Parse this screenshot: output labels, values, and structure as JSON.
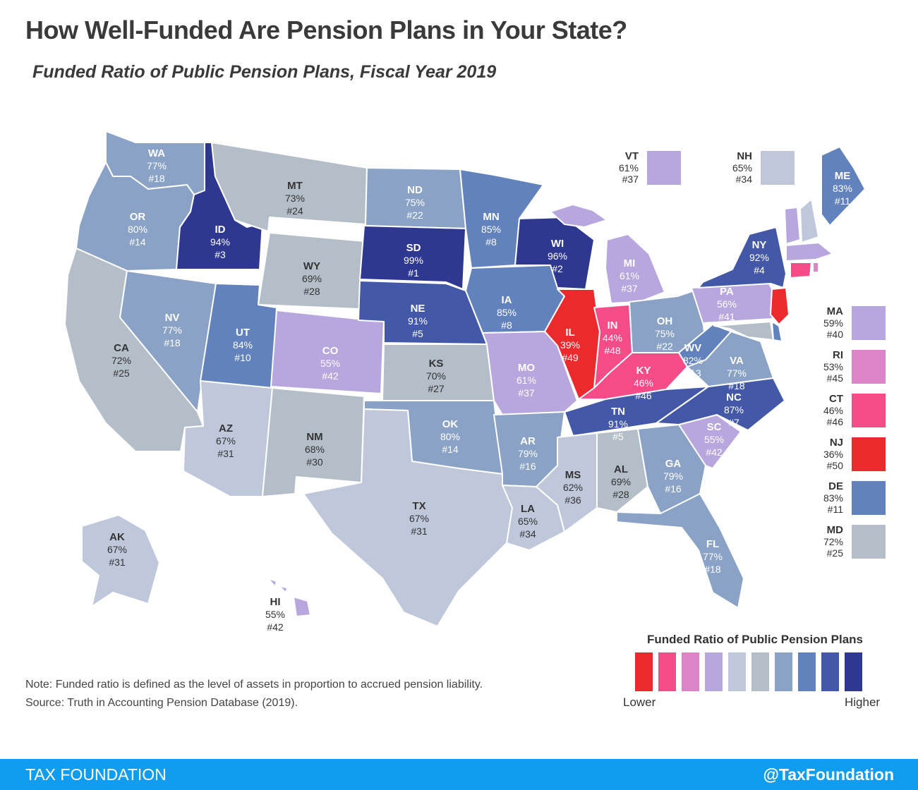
{
  "title": "How Well-Funded Are Pension Plans in Your State?",
  "subtitle": "Funded Ratio of Public Pension Plans, Fiscal Year 2019",
  "colors": {
    "c1": "#ec2a2e",
    "c2": "#f54b89",
    "c3": "#dc84c8",
    "c4": "#b7a7de",
    "c5": "#bfc8db",
    "c6": "#b4bec8",
    "c7": "#8aa2c5",
    "c8": "#6282bd",
    "c9": "#4359a8",
    "c10": "#2f3891"
  },
  "states": {
    "WA": {
      "value": "77%",
      "rank": "#18",
      "color": "c7"
    },
    "OR": {
      "value": "80%",
      "rank": "#14",
      "color": "c7"
    },
    "CA": {
      "value": "72%",
      "rank": "#25",
      "color": "c6"
    },
    "ID": {
      "value": "94%",
      "rank": "#3",
      "color": "c10"
    },
    "NV": {
      "value": "77%",
      "rank": "#18",
      "color": "c7"
    },
    "MT": {
      "value": "73%",
      "rank": "#24",
      "color": "c6"
    },
    "WY": {
      "value": "69%",
      "rank": "#28",
      "color": "c6"
    },
    "UT": {
      "value": "84%",
      "rank": "#10",
      "color": "c8"
    },
    "AZ": {
      "value": "67%",
      "rank": "#31",
      "color": "c5"
    },
    "CO": {
      "value": "55%",
      "rank": "#42",
      "color": "c4"
    },
    "NM": {
      "value": "68%",
      "rank": "#30",
      "color": "c6"
    },
    "ND": {
      "value": "75%",
      "rank": "#22",
      "color": "c7"
    },
    "SD": {
      "value": "99%",
      "rank": "#1",
      "color": "c10"
    },
    "NE": {
      "value": "91%",
      "rank": "#5",
      "color": "c9"
    },
    "KS": {
      "value": "70%",
      "rank": "#27",
      "color": "c6"
    },
    "OK": {
      "value": "80%",
      "rank": "#14",
      "color": "c7"
    },
    "TX": {
      "value": "67%",
      "rank": "#31",
      "color": "c5"
    },
    "MN": {
      "value": "85%",
      "rank": "#8",
      "color": "c8"
    },
    "IA": {
      "value": "85%",
      "rank": "#8",
      "color": "c8"
    },
    "MO": {
      "value": "61%",
      "rank": "#37",
      "color": "c4"
    },
    "AR": {
      "value": "79%",
      "rank": "#16",
      "color": "c7"
    },
    "LA": {
      "value": "65%",
      "rank": "#34",
      "color": "c5"
    },
    "WI": {
      "value": "96%",
      "rank": "#2",
      "color": "c10"
    },
    "IL": {
      "value": "39%",
      "rank": "#49",
      "color": "c1"
    },
    "MI": {
      "value": "61%",
      "rank": "#37",
      "color": "c4"
    },
    "IN": {
      "value": "44%",
      "rank": "#48",
      "color": "c2"
    },
    "OH": {
      "value": "75%",
      "rank": "#22",
      "color": "c7"
    },
    "KY": {
      "value": "46%",
      "rank": "#46",
      "color": "c2"
    },
    "TN": {
      "value": "91%",
      "rank": "#5",
      "color": "c9"
    },
    "MS": {
      "value": "62%",
      "rank": "#36",
      "color": "c5"
    },
    "AL": {
      "value": "69%",
      "rank": "#28",
      "color": "c6"
    },
    "GA": {
      "value": "79%",
      "rank": "#16",
      "color": "c7"
    },
    "FL": {
      "value": "77%",
      "rank": "#18",
      "color": "c7"
    },
    "SC": {
      "value": "55%",
      "rank": "#42",
      "color": "c4"
    },
    "NC": {
      "value": "87%",
      "rank": "#7",
      "color": "c9"
    },
    "VA": {
      "value": "77%",
      "rank": "#18",
      "color": "c7"
    },
    "WV": {
      "value": "82%",
      "rank": "#13",
      "color": "c8"
    },
    "PA": {
      "value": "56%",
      "rank": "#41",
      "color": "c4"
    },
    "NY": {
      "value": "92%",
      "rank": "#4",
      "color": "c9"
    },
    "ME": {
      "value": "83%",
      "rank": "#11",
      "color": "c8"
    },
    "AK": {
      "value": "67%",
      "rank": "#31",
      "color": "c5"
    },
    "HI": {
      "value": "55%",
      "rank": "#42",
      "color": "c4"
    },
    "VT": {
      "value": "61%",
      "rank": "#37",
      "color": "c4"
    },
    "NH": {
      "value": "65%",
      "rank": "#34",
      "color": "c5"
    },
    "MA": {
      "value": "59%",
      "rank": "#40",
      "color": "c4"
    },
    "RI": {
      "value": "53%",
      "rank": "#45",
      "color": "c3"
    },
    "CT": {
      "value": "46%",
      "rank": "#46",
      "color": "c2"
    },
    "NJ": {
      "value": "36%",
      "rank": "#50",
      "color": "c1"
    },
    "DE": {
      "value": "83%",
      "rank": "#11",
      "color": "c8"
    },
    "MD": {
      "value": "72%",
      "rank": "#25",
      "color": "c6"
    }
  },
  "legend": {
    "title": "Funded Ratio of Public Pension Plans",
    "low_label": "Lower",
    "high_label": "Higher",
    "scale": [
      "c1",
      "c2",
      "c3",
      "c4",
      "c5",
      "c6",
      "c7",
      "c8",
      "c9",
      "c10"
    ]
  },
  "note": {
    "line1": "Note: Funded ratio is defined as the level of assets in proportion to accrued pension liability.",
    "line2": "Source: Truth in Accounting Pension Database (2019)."
  },
  "footer": {
    "brand": "TAX FOUNDATION",
    "handle": "@TaxFoundation"
  }
}
